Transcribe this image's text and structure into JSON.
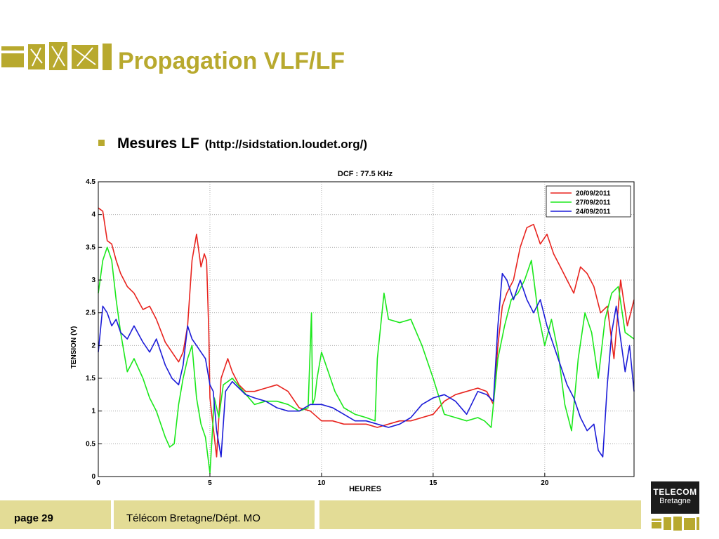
{
  "slide": {
    "title": "Propagation VLF/LF",
    "bullet_main": "Mesures LF",
    "bullet_sub": "(http://sidstation.loudet.org/)",
    "accent_color": "#b8a92e",
    "footer_color": "#e3dc96",
    "footer_page": "page 29",
    "footer_dept": "Télécom Bretagne/Dépt. MO",
    "badge_line1": "TELECOM",
    "badge_line2": "Bretagne"
  },
  "chart_data": {
    "type": "line",
    "title": "DCF : 77.5 KHz",
    "xlabel": "HEURES",
    "ylabel": "TENSION (V)",
    "xlim": [
      0,
      24
    ],
    "ylim": [
      0,
      4.5
    ],
    "xticks": [
      "0",
      "5",
      "10",
      "15",
      "20"
    ],
    "yticks": [
      "0",
      "0.5",
      "1",
      "1.5",
      "2",
      "2.5",
      "3",
      "3.5",
      "4",
      "4.5"
    ],
    "grid": true,
    "legend_position": "top-right",
    "series": [
      {
        "name": "20/09/2011",
        "color": "#e8231e",
        "x": [
          0,
          0.2,
          0.4,
          0.6,
          0.8,
          1.0,
          1.3,
          1.6,
          2.0,
          2.3,
          2.6,
          3.0,
          3.3,
          3.6,
          3.8,
          4.0,
          4.2,
          4.4,
          4.6,
          4.75,
          4.85,
          4.95,
          5.0,
          5.1,
          5.3,
          5.5,
          5.8,
          6.0,
          6.3,
          6.6,
          7.0,
          7.5,
          8.0,
          8.5,
          9.0,
          9.5,
          10.0,
          10.5,
          11.0,
          11.5,
          12.0,
          12.5,
          13.0,
          13.5,
          14.0,
          14.5,
          15.0,
          15.5,
          16.0,
          16.5,
          17.0,
          17.4,
          17.7,
          17.9,
          18.1,
          18.3,
          18.6,
          18.9,
          19.2,
          19.5,
          19.8,
          20.1,
          20.4,
          20.7,
          21.0,
          21.3,
          21.6,
          21.9,
          22.2,
          22.5,
          22.8,
          23.1,
          23.4,
          23.7,
          24.0
        ],
        "y": [
          4.1,
          4.05,
          3.6,
          3.55,
          3.3,
          3.1,
          2.9,
          2.8,
          2.55,
          2.6,
          2.4,
          2.05,
          1.9,
          1.75,
          1.9,
          2.3,
          3.3,
          3.7,
          3.2,
          3.4,
          3.3,
          2.2,
          1.2,
          0.9,
          0.3,
          1.5,
          1.8,
          1.6,
          1.4,
          1.3,
          1.3,
          1.35,
          1.4,
          1.3,
          1.05,
          1.0,
          0.85,
          0.85,
          0.8,
          0.8,
          0.8,
          0.75,
          0.8,
          0.85,
          0.85,
          0.9,
          0.95,
          1.15,
          1.25,
          1.3,
          1.35,
          1.3,
          1.1,
          2.0,
          2.6,
          2.8,
          3.0,
          3.5,
          3.8,
          3.85,
          3.55,
          3.7,
          3.4,
          3.2,
          3.0,
          2.8,
          3.2,
          3.1,
          2.9,
          2.5,
          2.6,
          1.8,
          3.0,
          2.3,
          2.7
        ]
      },
      {
        "name": "27/09/2011",
        "color": "#1be81b",
        "x": [
          0,
          0.2,
          0.4,
          0.6,
          0.8,
          1.0,
          1.3,
          1.6,
          2.0,
          2.3,
          2.6,
          3.0,
          3.2,
          3.4,
          3.6,
          3.8,
          4.0,
          4.2,
          4.4,
          4.6,
          4.8,
          5.0,
          5.2,
          5.4,
          5.6,
          5.8,
          6.0,
          6.5,
          7.0,
          7.5,
          8.0,
          8.5,
          9.0,
          9.4,
          9.55,
          9.6,
          9.7,
          9.8,
          10.0,
          10.3,
          10.6,
          11.0,
          11.5,
          12.0,
          12.4,
          12.5,
          12.8,
          13.0,
          13.5,
          14.0,
          14.5,
          15.0,
          15.5,
          16.0,
          16.5,
          17.0,
          17.3,
          17.6,
          17.9,
          18.2,
          18.5,
          18.8,
          19.1,
          19.4,
          19.7,
          20.0,
          20.3,
          20.6,
          20.9,
          21.2,
          21.5,
          21.8,
          22.1,
          22.4,
          22.7,
          23.0,
          23.3,
          23.6,
          24.0
        ],
        "y": [
          2.8,
          3.3,
          3.5,
          3.3,
          2.7,
          2.2,
          1.6,
          1.8,
          1.5,
          1.2,
          1.0,
          0.6,
          0.45,
          0.5,
          1.1,
          1.5,
          1.8,
          2.0,
          1.2,
          0.8,
          0.6,
          0.05,
          1.2,
          0.9,
          1.4,
          1.45,
          1.5,
          1.3,
          1.1,
          1.15,
          1.15,
          1.1,
          1.0,
          1.05,
          2.5,
          1.1,
          1.2,
          1.5,
          1.9,
          1.6,
          1.3,
          1.05,
          0.95,
          0.9,
          0.85,
          1.8,
          2.8,
          2.4,
          2.35,
          2.4,
          2.0,
          1.5,
          0.95,
          0.9,
          0.85,
          0.9,
          0.85,
          0.75,
          1.8,
          2.3,
          2.7,
          2.8,
          3.0,
          3.3,
          2.5,
          2.0,
          2.4,
          1.9,
          1.1,
          0.7,
          1.8,
          2.5,
          2.2,
          1.5,
          2.4,
          2.8,
          2.9,
          2.2,
          2.1
        ]
      },
      {
        "name": "24/09/2011",
        "color": "#1c1cd8",
        "x": [
          0,
          0.2,
          0.4,
          0.6,
          0.8,
          1.0,
          1.3,
          1.6,
          2.0,
          2.3,
          2.6,
          3.0,
          3.3,
          3.6,
          3.8,
          4.0,
          4.2,
          4.4,
          4.6,
          4.8,
          5.0,
          5.15,
          5.3,
          5.5,
          5.7,
          6.0,
          6.3,
          6.6,
          7.0,
          7.5,
          8.0,
          8.5,
          9.0,
          9.5,
          10.0,
          10.5,
          11.0,
          11.5,
          12.0,
          12.5,
          13.0,
          13.5,
          14.0,
          14.5,
          15.0,
          15.5,
          16.0,
          16.5,
          17.0,
          17.4,
          17.7,
          17.9,
          18.1,
          18.3,
          18.6,
          18.9,
          19.2,
          19.5,
          19.8,
          20.1,
          20.4,
          20.7,
          21.0,
          21.3,
          21.6,
          21.9,
          22.2,
          22.4,
          22.6,
          22.8,
          23.0,
          23.2,
          23.4,
          23.6,
          23.8,
          24.0
        ],
        "y": [
          1.9,
          2.6,
          2.5,
          2.3,
          2.4,
          2.2,
          2.1,
          2.3,
          2.05,
          1.9,
          2.1,
          1.7,
          1.5,
          1.4,
          1.7,
          2.3,
          2.1,
          2.0,
          1.9,
          1.8,
          1.4,
          1.3,
          0.7,
          0.3,
          1.3,
          1.45,
          1.35,
          1.25,
          1.2,
          1.15,
          1.05,
          1.0,
          1.0,
          1.1,
          1.1,
          1.05,
          0.95,
          0.85,
          0.85,
          0.8,
          0.75,
          0.8,
          0.9,
          1.1,
          1.2,
          1.25,
          1.15,
          0.95,
          1.3,
          1.25,
          1.15,
          2.3,
          3.1,
          3.0,
          2.7,
          3.0,
          2.7,
          2.5,
          2.7,
          2.3,
          2.0,
          1.7,
          1.4,
          1.2,
          0.9,
          0.7,
          0.8,
          0.4,
          0.3,
          1.4,
          2.2,
          2.6,
          2.1,
          1.6,
          2.0,
          1.3
        ]
      }
    ]
  }
}
